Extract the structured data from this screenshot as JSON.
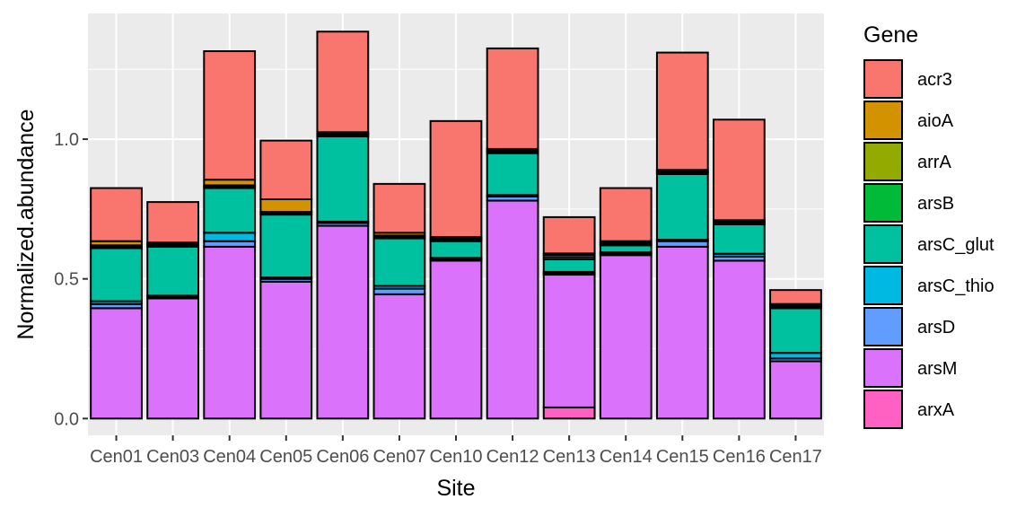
{
  "chart_data": {
    "type": "bar",
    "stacked": true,
    "xlabel": "Site",
    "ylabel": "Normalized.abundance",
    "ylim": [
      -0.06,
      1.45
    ],
    "yticks": [
      0.0,
      0.5,
      1.0
    ],
    "ytick_labels": [
      "0.0",
      "0.5",
      "1.0"
    ],
    "grid": true,
    "legend_title": "Gene",
    "legend_position": "right",
    "categories": [
      "Cen01",
      "Cen03",
      "Cen04",
      "Cen05",
      "Cen06",
      "Cen07",
      "Cen10",
      "Cen12",
      "Cen13",
      "Cen14",
      "Cen15",
      "Cen16",
      "Cen17"
    ],
    "stack_order_bottom_to_top": [
      "arxA",
      "arsM",
      "arsD",
      "arsC_thio",
      "arsC_glut",
      "arsB",
      "arrA",
      "aioA",
      "acr3"
    ],
    "series": [
      {
        "name": "acr3",
        "color": "#F8766D",
        "values": [
          0.19,
          0.145,
          0.46,
          0.21,
          0.36,
          0.175,
          0.415,
          0.36,
          0.13,
          0.19,
          0.42,
          0.36,
          0.05
        ]
      },
      {
        "name": "aioA",
        "color": "#D39200",
        "values": [
          0.015,
          0.005,
          0.02,
          0.045,
          0.005,
          0.01,
          0.005,
          0.005,
          0.005,
          0.005,
          0.005,
          0.005,
          0.005
        ]
      },
      {
        "name": "arrA",
        "color": "#93AA00",
        "values": [
          0.005,
          0.005,
          0.005,
          0.005,
          0.005,
          0.005,
          0.005,
          0.005,
          0.008,
          0.005,
          0.005,
          0.005,
          0.005
        ]
      },
      {
        "name": "arsB",
        "color": "#00BA38",
        "values": [
          0.005,
          0.005,
          0.005,
          0.005,
          0.005,
          0.005,
          0.005,
          0.005,
          0.008,
          0.005,
          0.005,
          0.005,
          0.005
        ]
      },
      {
        "name": "arsC_glut",
        "color": "#00C19F",
        "values": [
          0.19,
          0.175,
          0.16,
          0.225,
          0.305,
          0.17,
          0.06,
          0.15,
          0.045,
          0.025,
          0.235,
          0.105,
          0.16
        ]
      },
      {
        "name": "arsC_thio",
        "color": "#00B9E3",
        "values": [
          0.01,
          0.005,
          0.03,
          0.005,
          0.005,
          0.01,
          0.005,
          0.005,
          0.005,
          0.005,
          0.005,
          0.01,
          0.02
        ]
      },
      {
        "name": "arsD",
        "color": "#619CFF",
        "values": [
          0.015,
          0.005,
          0.02,
          0.01,
          0.01,
          0.02,
          0.005,
          0.015,
          0.005,
          0.005,
          0.02,
          0.015,
          0.01
        ]
      },
      {
        "name": "arsM",
        "color": "#DB72FB",
        "values": [
          0.395,
          0.43,
          0.615,
          0.49,
          0.69,
          0.445,
          0.565,
          0.78,
          0.475,
          0.585,
          0.615,
          0.565,
          0.205
        ]
      },
      {
        "name": "arxA",
        "color": "#FF61C3",
        "values": [
          0,
          0,
          0,
          0,
          0,
          0,
          0,
          0,
          0.04,
          0,
          0,
          0,
          0
        ]
      }
    ]
  }
}
